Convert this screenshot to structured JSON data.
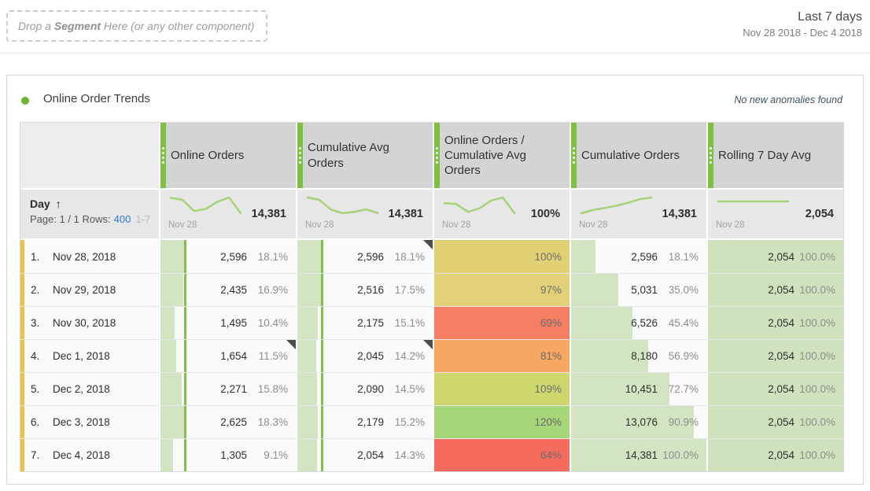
{
  "topbar": {
    "drop_zone": {
      "prefix": "Drop a ",
      "bold": "Segment",
      "suffix": " Here (or any other component)"
    },
    "range_title": "Last 7 days",
    "range_dates": "Nov 28 2018 - Dec 4 2018"
  },
  "panel": {
    "title": "Online Order Trends",
    "anomaly_note": "No new anomalies found"
  },
  "table": {
    "dimension": {
      "label": "Day",
      "sort_arrow": "↑",
      "page_label": "Page: 1 / 1 Rows:",
      "rows_link": "400",
      "row_range": "1-7"
    },
    "row_labels": [
      {
        "index": "1.",
        "date": "Nov 28, 2018"
      },
      {
        "index": "2.",
        "date": "Nov 29, 2018"
      },
      {
        "index": "3.",
        "date": "Nov 30, 2018"
      },
      {
        "index": "4.",
        "date": "Dec 1, 2018"
      },
      {
        "index": "5.",
        "date": "Dec 2, 2018"
      },
      {
        "index": "6.",
        "date": "Dec 3, 2018"
      },
      {
        "index": "7.",
        "date": "Dec 4, 2018"
      }
    ],
    "columns": [
      {
        "id": "online-orders",
        "header": "Online Orders",
        "total": "14,381",
        "spark_label": "Nov 28",
        "spark_values": [
          2596,
          2435,
          1495,
          1654,
          2271,
          2625,
          1305
        ],
        "cell_type": "bar",
        "max_pct": 18.3,
        "cells": [
          {
            "value": "2,596",
            "pct": "18.1%",
            "bar": 18.1
          },
          {
            "value": "2,435",
            "pct": "16.9%",
            "bar": 16.9
          },
          {
            "value": "1,495",
            "pct": "10.4%",
            "bar": 10.4
          },
          {
            "value": "1,654",
            "pct": "11.5%",
            "bar": 11.5
          },
          {
            "value": "2,271",
            "pct": "15.8%",
            "bar": 15.8
          },
          {
            "value": "2,625",
            "pct": "18.3%",
            "bar": 18.3
          },
          {
            "value": "1,305",
            "pct": "9.1%",
            "bar": 9.1
          }
        ]
      },
      {
        "id": "cumulative-avg-orders",
        "header": "Cumulative Avg Orders",
        "total": "14,381",
        "spark_label": "Nov 28",
        "spark_values": [
          2596,
          2516,
          2175,
          2045,
          2090,
          2179,
          2054
        ],
        "cell_type": "bar",
        "max_pct": 18.1,
        "cells": [
          {
            "value": "2,596",
            "pct": "18.1%",
            "bar": 18.1
          },
          {
            "value": "2,516",
            "pct": "17.5%",
            "bar": 17.5
          },
          {
            "value": "2,175",
            "pct": "15.1%",
            "bar": 15.1
          },
          {
            "value": "2,045",
            "pct": "14.2%",
            "bar": 14.2
          },
          {
            "value": "2,090",
            "pct": "14.5%",
            "bar": 14.5
          },
          {
            "value": "2,179",
            "pct": "15.2%",
            "bar": 15.2
          },
          {
            "value": "2,054",
            "pct": "14.3%",
            "bar": 14.3
          }
        ]
      },
      {
        "id": "orders-vs-cumulative-avg",
        "header": "Online Orders / Cumulative Avg Orders",
        "total": "100%",
        "spark_label": "Nov 28",
        "spark_values": [
          100,
          97,
          69,
          81,
          109,
          120,
          64
        ],
        "cell_type": "heat",
        "cells": [
          {
            "value": "100%",
            "color": "#e2d075"
          },
          {
            "value": "97%",
            "color": "#e2d178"
          },
          {
            "value": "69%",
            "color": "#f67e62"
          },
          {
            "value": "81%",
            "color": "#f7a761"
          },
          {
            "value": "109%",
            "color": "#cdd76e"
          },
          {
            "value": "120%",
            "color": "#a6d677"
          },
          {
            "value": "64%",
            "color": "#f56b5e"
          }
        ]
      },
      {
        "id": "cumulative-orders",
        "header": "Cumulative Orders",
        "total": "14,381",
        "spark_label": "Nov 28",
        "spark_values": [
          2596,
          5031,
          6526,
          8180,
          10451,
          13076,
          14381
        ],
        "cell_type": "bar",
        "max_pct": null,
        "cells": [
          {
            "value": "2,596",
            "pct": "18.1%",
            "bar": 18.1
          },
          {
            "value": "5,031",
            "pct": "35.0%",
            "bar": 35.0
          },
          {
            "value": "6,526",
            "pct": "45.4%",
            "bar": 45.4
          },
          {
            "value": "8,180",
            "pct": "56.9%",
            "bar": 56.9
          },
          {
            "value": "10,451",
            "pct": "72.7%",
            "bar": 72.7
          },
          {
            "value": "13,076",
            "pct": "90.9%",
            "bar": 90.9
          },
          {
            "value": "14,381",
            "pct": "100.0%",
            "bar": 100.0
          }
        ]
      },
      {
        "id": "rolling-7-day-avg",
        "header": "Rolling 7 Day Avg",
        "total": "2,054",
        "spark_label": "Nov 28",
        "spark_values": [
          2054,
          2054,
          2054,
          2054,
          2054,
          2054,
          2054
        ],
        "cell_type": "filled",
        "cells": [
          {
            "value": "2,054",
            "pct": "100.0%"
          },
          {
            "value": "2,054",
            "pct": "100.0%"
          },
          {
            "value": "2,054",
            "pct": "100.0%"
          },
          {
            "value": "2,054",
            "pct": "100.0%"
          },
          {
            "value": "2,054",
            "pct": "100.0%"
          },
          {
            "value": "2,054",
            "pct": "100.0%"
          },
          {
            "value": "2,054",
            "pct": "100.0%"
          }
        ]
      }
    ],
    "annotations": [
      {
        "row": 0,
        "col": 1
      },
      {
        "row": 3,
        "col": 0
      },
      {
        "row": 3,
        "col": 1
      }
    ]
  },
  "colors": {
    "accent_green": "#7ec142",
    "bar_fill": "#d2e4c1",
    "bar_marker": "#83bf4f",
    "filled_cell": "#cfe2bd",
    "spark_line": "#a5d377",
    "row_accent": "#f0bf4a",
    "link": "#2b7cd8",
    "panel_dot": "#6cb435",
    "flag": "#4d4d4d"
  }
}
